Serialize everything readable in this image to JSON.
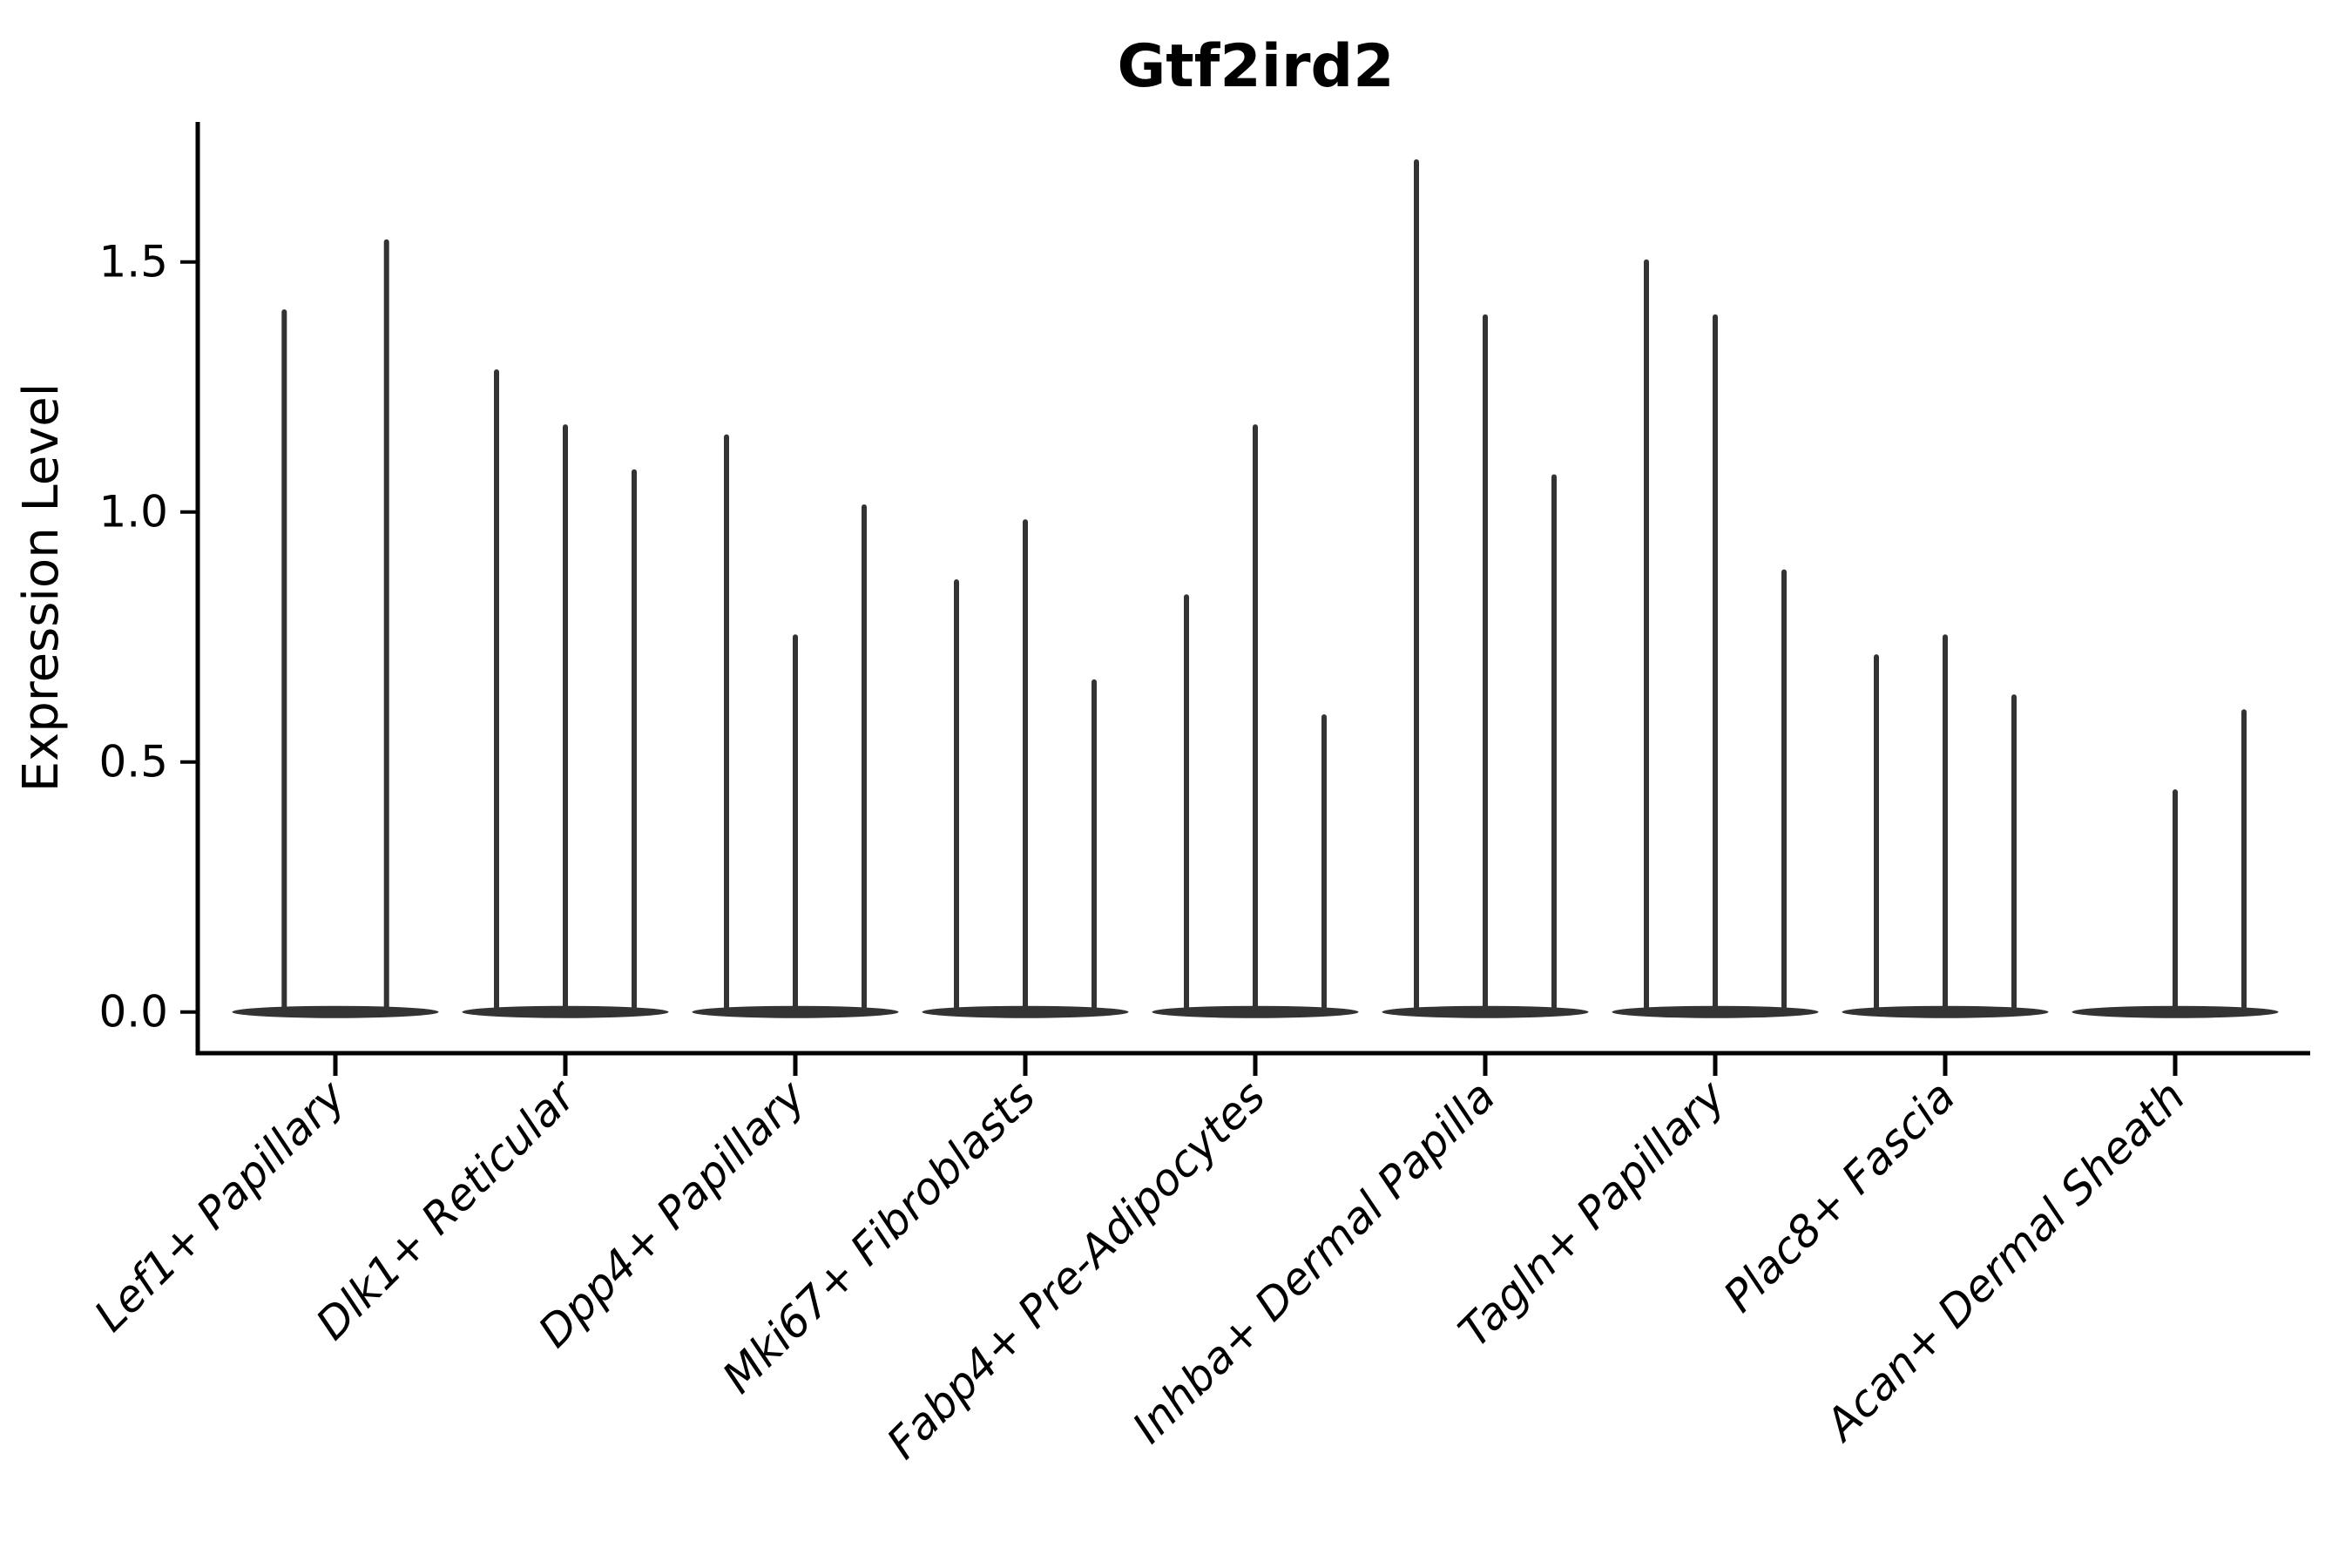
{
  "chart_data": {
    "type": "violin",
    "title": "Gtf2ird2",
    "ylabel": "Expression Level",
    "xlabel": "",
    "grid": false,
    "legend": "none",
    "background_color": "#ffffff",
    "violin_color": "#333333",
    "axis_color": "#000000",
    "text_color": "#000000",
    "ylim": [
      -0.08,
      1.78
    ],
    "ytick_labels": [
      "0.0",
      "0.5",
      "1.0",
      "1.5"
    ],
    "ytick_values": [
      0.0,
      0.5,
      1.0,
      1.5
    ],
    "categories": [
      "Lef1+ Papillary",
      "Dlk1+ Reticular",
      "Dpp4+ Papillary",
      "Mki67+ Fibroblasts",
      "Fabp4+ Pre-Adipocytes",
      "Inhba+ Dermal Papilla",
      "Tagln+ Papillary",
      "Plac8+ Fascia",
      "Acan+ Dermal Sheath"
    ],
    "groups": [
      {
        "label": "Lef1+ Papillary",
        "violin_maxima": [
          1.4,
          1.54
        ]
      },
      {
        "label": "Dlk1+ Reticular",
        "violin_maxima": [
          1.28,
          1.17,
          1.08
        ]
      },
      {
        "label": "Dpp4+ Papillary",
        "violin_maxima": [
          1.15,
          0.75,
          1.01
        ]
      },
      {
        "label": "Mki67+ Fibroblasts",
        "violin_maxima": [
          0.86,
          0.98,
          0.66
        ]
      },
      {
        "label": "Fabp4+ Pre-Adipocytes",
        "violin_maxima": [
          0.83,
          1.17,
          0.59
        ]
      },
      {
        "label": "Inhba+ Dermal Papilla",
        "violin_maxima": [
          1.7,
          1.39,
          1.07
        ]
      },
      {
        "label": "Tagln+ Papillary",
        "violin_maxima": [
          1.5,
          1.39,
          0.88
        ]
      },
      {
        "label": "Plac8+ Fascia",
        "violin_maxima": [
          0.71,
          0.75,
          0.63
        ]
      },
      {
        "label": "Acan+ Dermal Sheath",
        "violin_maxima": [
          0.0,
          0.44,
          0.6
        ]
      }
    ]
  }
}
